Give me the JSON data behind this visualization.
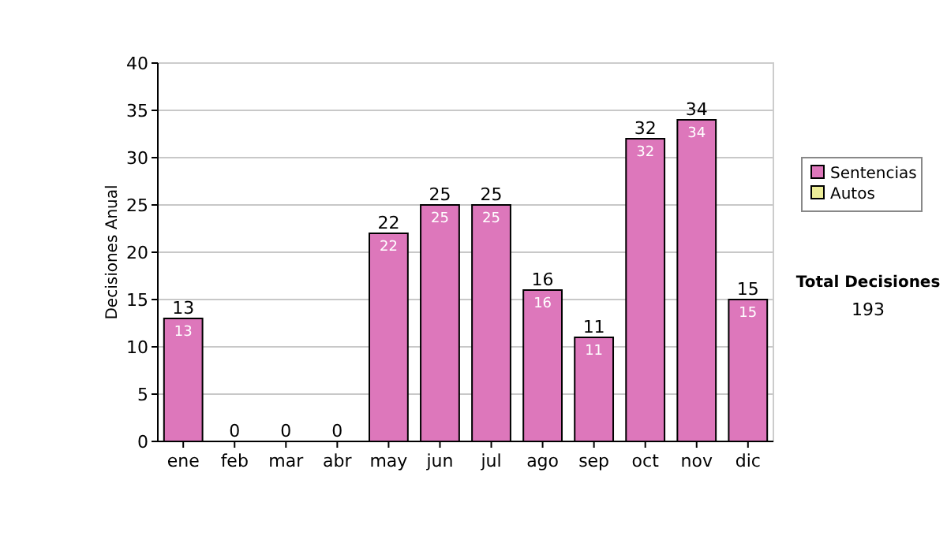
{
  "chart_data": {
    "type": "bar",
    "ylabel": "Decisiones Anual",
    "categories": [
      "ene",
      "feb",
      "mar",
      "abr",
      "may",
      "jun",
      "jul",
      "ago",
      "sep",
      "oct",
      "nov",
      "dic"
    ],
    "series": [
      {
        "name": "Sentencias",
        "color": "#dd77bb",
        "values": [
          13,
          0,
          0,
          0,
          22,
          25,
          25,
          16,
          11,
          32,
          34,
          15
        ],
        "value_labels": [
          "13",
          null,
          null,
          null,
          "22",
          "25",
          "25",
          "16",
          "11",
          "32",
          "34",
          "15"
        ]
      },
      {
        "name": "Autos",
        "color": "#eeee99",
        "values": [
          null,
          null,
          null,
          null,
          null,
          null,
          null,
          null,
          null,
          null,
          null,
          null
        ]
      }
    ],
    "stacked": true,
    "totals": [
      "13",
      "0",
      "0",
      "0",
      "22",
      "25",
      "25",
      "16",
      "11",
      "32",
      "34",
      "15"
    ],
    "ylim": [
      0,
      40
    ],
    "yticks": [
      0,
      5,
      10,
      15,
      20,
      25,
      30,
      35,
      40
    ],
    "grid": "y",
    "legend": "right",
    "annotations": [
      "Total Decisiones",
      "193"
    ]
  }
}
